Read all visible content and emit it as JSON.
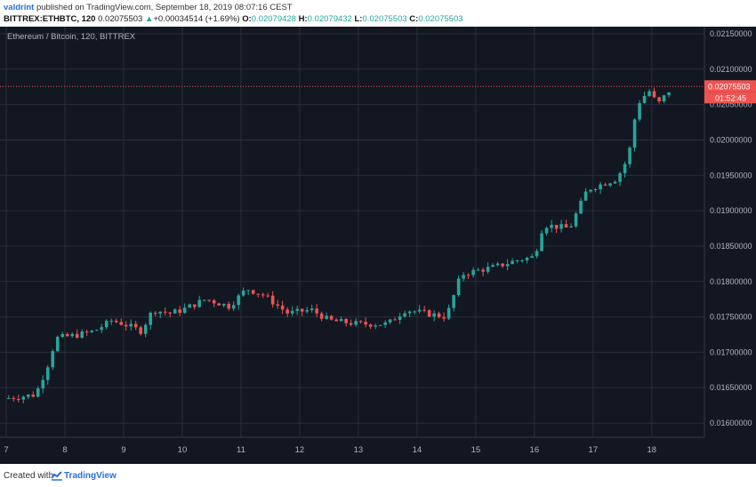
{
  "header": {
    "author": "valdrint",
    "published_text": "published on TradingView.com, September 18, 2019 08:07:16 CEST",
    "symbol": "BITTREX:ETHBTC, 120",
    "last_price": "0.02075503",
    "change_arrow": "▲",
    "change": "+0.00034514 (+1.69%)",
    "o_label": "O:",
    "o_value": "0.02079428",
    "h_label": "H:",
    "h_value": "0.02079432",
    "l_label": "L:",
    "l_value": "0.02075503",
    "c_label": "C:",
    "c_value": "0.02075503"
  },
  "footer": {
    "created_with": "Created with",
    "brand": "TradingView",
    "logo_icon": "tradingview-logo-icon"
  },
  "colors": {
    "background": "#131722",
    "grid": "#2a2e39",
    "up": "#26a69a",
    "down": "#ef5350",
    "text": "#b2b5be",
    "price_line": "#ef5350"
  },
  "chart_data": {
    "type": "candlestick",
    "title": "Ethereum / Bitcoin, 120, BITTREX",
    "x_ticks": [
      "7",
      "8",
      "9",
      "10",
      "11",
      "12",
      "13",
      "14",
      "15",
      "16",
      "17",
      "18"
    ],
    "y_ticks": [
      "0.01600000",
      "0.01650000",
      "0.01700000",
      "0.01750000",
      "0.01800000",
      "0.01850000",
      "0.01900000",
      "0.01950000",
      "0.02000000",
      "0.02050000",
      "0.02100000",
      "0.02150000"
    ],
    "ylim": [
      0.0158,
      0.0216
    ],
    "xlim": [
      7.0,
      18.7
    ],
    "grid": true,
    "current_price": 0.02075503,
    "current_price_label": "0.02075503",
    "countdown_label": "01:52:45",
    "anchors": [
      [
        7.0,
        0.01635
      ],
      [
        7.5,
        0.0164
      ],
      [
        7.7,
        0.0168
      ],
      [
        7.85,
        0.0172
      ],
      [
        8.25,
        0.01725
      ],
      [
        8.5,
        0.0173
      ],
      [
        8.8,
        0.01745
      ],
      [
        9.0,
        0.0174
      ],
      [
        9.3,
        0.0173
      ],
      [
        9.5,
        0.0176
      ],
      [
        9.8,
        0.01755
      ],
      [
        10.0,
        0.0176
      ],
      [
        10.4,
        0.01775
      ],
      [
        10.8,
        0.01765
      ],
      [
        11.1,
        0.0179
      ],
      [
        11.4,
        0.0178
      ],
      [
        11.8,
        0.01755
      ],
      [
        12.2,
        0.0176
      ],
      [
        12.5,
        0.01745
      ],
      [
        13.0,
        0.0174
      ],
      [
        13.5,
        0.0174
      ],
      [
        13.8,
        0.0176
      ],
      [
        14.5,
        0.0175
      ],
      [
        14.75,
        0.0181
      ],
      [
        15.0,
        0.01815
      ],
      [
        15.3,
        0.0182
      ],
      [
        15.7,
        0.0183
      ],
      [
        16.0,
        0.01835
      ],
      [
        16.15,
        0.0188
      ],
      [
        16.6,
        0.01875
      ],
      [
        16.9,
        0.0193
      ],
      [
        17.4,
        0.01945
      ],
      [
        17.6,
        0.01975
      ],
      [
        17.75,
        0.0205
      ],
      [
        17.95,
        0.0207
      ],
      [
        18.1,
        0.0205
      ],
      [
        18.35,
        0.02075
      ]
    ]
  }
}
